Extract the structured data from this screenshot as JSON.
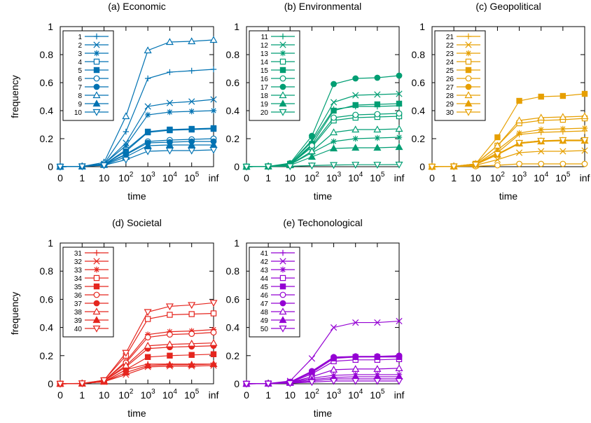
{
  "figure": {
    "x_tick_labels": [
      {
        "base": "0",
        "exp": ""
      },
      {
        "base": "1",
        "exp": ""
      },
      {
        "base": "10",
        "exp": ""
      },
      {
        "base": "10",
        "exp": "2"
      },
      {
        "base": "10",
        "exp": "3"
      },
      {
        "base": "10",
        "exp": "4"
      },
      {
        "base": "10",
        "exp": "5"
      },
      {
        "base": "inf",
        "exp": ""
      }
    ],
    "y_tick_labels": [
      "0",
      "0.2",
      "0.4",
      "0.6",
      "0.8",
      "1"
    ]
  },
  "chart_data": [
    {
      "type": "line",
      "title": "(a) Economic",
      "xlabel": "time",
      "ylabel": "frequency",
      "color": "#0072b2",
      "ylim": [
        0,
        1
      ],
      "grid": false,
      "legend_position": "top-left",
      "x": [
        "0",
        "1",
        "10",
        "10^2",
        "10^3",
        "10^4",
        "10^5",
        "inf"
      ],
      "series": [
        {
          "name": "1",
          "marker": "plus",
          "values": [
            0,
            0.002,
            0.02,
            0.25,
            0.63,
            0.675,
            0.685,
            0.695
          ]
        },
        {
          "name": "2",
          "marker": "cross",
          "values": [
            0,
            0.002,
            0.02,
            0.17,
            0.43,
            0.455,
            0.465,
            0.48
          ]
        },
        {
          "name": "3",
          "marker": "star",
          "values": [
            0,
            0.002,
            0.02,
            0.15,
            0.37,
            0.39,
            0.395,
            0.4
          ]
        },
        {
          "name": "4",
          "marker": "square-open",
          "values": [
            0,
            0.002,
            0.015,
            0.12,
            0.25,
            0.265,
            0.27,
            0.275
          ]
        },
        {
          "name": "5",
          "marker": "square-filled",
          "values": [
            0,
            0.002,
            0.015,
            0.11,
            0.245,
            0.26,
            0.265,
            0.27
          ]
        },
        {
          "name": "6",
          "marker": "circle-open",
          "values": [
            0,
            0.002,
            0.015,
            0.09,
            0.18,
            0.19,
            0.195,
            0.2
          ]
        },
        {
          "name": "7",
          "marker": "circle-filled",
          "values": [
            0,
            0.002,
            0.015,
            0.085,
            0.17,
            0.175,
            0.18,
            0.18
          ]
        },
        {
          "name": "8",
          "marker": "triangle-open",
          "values": [
            0,
            0.002,
            0.03,
            0.36,
            0.83,
            0.89,
            0.895,
            0.905
          ]
        },
        {
          "name": "9",
          "marker": "triangle-filled",
          "values": [
            0,
            0.002,
            0.012,
            0.07,
            0.15,
            0.155,
            0.155,
            0.155
          ]
        },
        {
          "name": "10",
          "marker": "triangle-down-open",
          "values": [
            0,
            0.002,
            0.01,
            0.05,
            0.11,
            0.115,
            0.115,
            0.12
          ]
        }
      ]
    },
    {
      "type": "line",
      "title": "(b) Environmental",
      "xlabel": "time",
      "ylabel": "",
      "color": "#009e73",
      "ylim": [
        0,
        1
      ],
      "grid": false,
      "legend_position": "top-left",
      "x": [
        "0",
        "1",
        "10",
        "10^2",
        "10^3",
        "10^4",
        "10^5",
        "inf"
      ],
      "series": [
        {
          "name": "11",
          "marker": "plus",
          "values": [
            0,
            0.002,
            0.02,
            0.18,
            0.41,
            0.43,
            0.43,
            0.435
          ]
        },
        {
          "name": "12",
          "marker": "cross",
          "values": [
            0,
            0.002,
            0.02,
            0.19,
            0.46,
            0.51,
            0.515,
            0.52
          ]
        },
        {
          "name": "13",
          "marker": "star",
          "values": [
            0,
            0.002,
            0.015,
            0.1,
            0.18,
            0.2,
            0.205,
            0.21
          ]
        },
        {
          "name": "14",
          "marker": "square-open",
          "values": [
            0,
            0.002,
            0.015,
            0.14,
            0.33,
            0.35,
            0.355,
            0.36
          ]
        },
        {
          "name": "15",
          "marker": "square-filled",
          "values": [
            0,
            0.002,
            0.015,
            0.16,
            0.4,
            0.44,
            0.445,
            0.45
          ]
        },
        {
          "name": "16",
          "marker": "circle-open",
          "values": [
            0,
            0.002,
            0.015,
            0.15,
            0.35,
            0.37,
            0.375,
            0.38
          ]
        },
        {
          "name": "17",
          "marker": "circle-filled",
          "values": [
            0,
            0.002,
            0.025,
            0.22,
            0.59,
            0.63,
            0.635,
            0.65
          ]
        },
        {
          "name": "18",
          "marker": "triangle-open",
          "values": [
            0,
            0.002,
            0.015,
            0.11,
            0.245,
            0.265,
            0.265,
            0.27
          ]
        },
        {
          "name": "19",
          "marker": "triangle-filled",
          "values": [
            0,
            0.002,
            0.01,
            0.07,
            0.13,
            0.135,
            0.135,
            0.14
          ]
        },
        {
          "name": "20",
          "marker": "triangle-down-open",
          "values": [
            0,
            0.001,
            0.003,
            0.008,
            0.012,
            0.014,
            0.014,
            0.015
          ]
        }
      ]
    },
    {
      "type": "line",
      "title": "(c) Geopolitical",
      "xlabel": "time",
      "ylabel": "",
      "color": "#e69f00",
      "ylim": [
        0,
        1
      ],
      "grid": false,
      "legend_position": "top-left",
      "x": [
        "0",
        "1",
        "10",
        "10^2",
        "10^3",
        "10^4",
        "10^5",
        "inf"
      ],
      "series": [
        {
          "name": "21",
          "marker": "plus",
          "values": [
            0,
            0.002,
            0.015,
            0.1,
            0.23,
            0.245,
            0.25,
            0.255
          ]
        },
        {
          "name": "22",
          "marker": "cross",
          "values": [
            0,
            0.002,
            0.01,
            0.05,
            0.1,
            0.11,
            0.11,
            0.115
          ]
        },
        {
          "name": "23",
          "marker": "star",
          "values": [
            0,
            0.002,
            0.015,
            0.12,
            0.24,
            0.265,
            0.27,
            0.275
          ]
        },
        {
          "name": "24",
          "marker": "square-open",
          "values": [
            0,
            0.002,
            0.02,
            0.15,
            0.31,
            0.33,
            0.335,
            0.345
          ]
        },
        {
          "name": "25",
          "marker": "square-filled",
          "values": [
            0,
            0.002,
            0.02,
            0.21,
            0.47,
            0.5,
            0.505,
            0.52
          ]
        },
        {
          "name": "26",
          "marker": "circle-open",
          "values": [
            0,
            0.001,
            0.003,
            0.01,
            0.02,
            0.02,
            0.02,
            0.02
          ]
        },
        {
          "name": "27",
          "marker": "circle-filled",
          "values": [
            0,
            0.002,
            0.015,
            0.09,
            0.17,
            0.185,
            0.185,
            0.19
          ]
        },
        {
          "name": "28",
          "marker": "triangle-open",
          "values": [
            0,
            0.002,
            0.02,
            0.15,
            0.33,
            0.35,
            0.355,
            0.36
          ]
        },
        {
          "name": "29",
          "marker": "triangle-filled",
          "values": [
            0,
            0.002,
            0.015,
            0.085,
            0.165,
            0.18,
            0.185,
            0.185
          ]
        },
        {
          "name": "30",
          "marker": "triangle-down-open",
          "values": [
            0,
            0.002,
            0.015,
            0.09,
            0.17,
            0.185,
            0.19,
            0.19
          ]
        }
      ]
    },
    {
      "type": "line",
      "title": "(d) Societal",
      "xlabel": "time",
      "ylabel": "frequency",
      "color": "#e5261f",
      "ylim": [
        0,
        1
      ],
      "grid": false,
      "legend_position": "top-left",
      "x": [
        "0",
        "1",
        "10",
        "10^2",
        "10^3",
        "10^4",
        "10^5",
        "inf"
      ],
      "series": [
        {
          "name": "31",
          "marker": "plus",
          "values": [
            0,
            0.002,
            0.015,
            0.1,
            0.14,
            0.14,
            0.14,
            0.14
          ]
        },
        {
          "name": "32",
          "marker": "cross",
          "values": [
            0,
            0.002,
            0.015,
            0.065,
            0.12,
            0.125,
            0.125,
            0.13
          ]
        },
        {
          "name": "33",
          "marker": "star",
          "values": [
            0,
            0.002,
            0.02,
            0.16,
            0.35,
            0.37,
            0.375,
            0.385
          ]
        },
        {
          "name": "34",
          "marker": "square-open",
          "values": [
            0,
            0.002,
            0.025,
            0.2,
            0.46,
            0.49,
            0.495,
            0.5
          ]
        },
        {
          "name": "35",
          "marker": "square-filled",
          "values": [
            0,
            0.002,
            0.015,
            0.1,
            0.19,
            0.2,
            0.205,
            0.21
          ]
        },
        {
          "name": "36",
          "marker": "circle-open",
          "values": [
            0,
            0.002,
            0.02,
            0.15,
            0.33,
            0.35,
            0.355,
            0.365
          ]
        },
        {
          "name": "37",
          "marker": "circle-filled",
          "values": [
            0,
            0.002,
            0.02,
            0.12,
            0.25,
            0.26,
            0.265,
            0.27
          ]
        },
        {
          "name": "38",
          "marker": "triangle-open",
          "values": [
            0,
            0.002,
            0.02,
            0.13,
            0.27,
            0.28,
            0.285,
            0.29
          ]
        },
        {
          "name": "39",
          "marker": "triangle-filled",
          "values": [
            0,
            0.002,
            0.015,
            0.08,
            0.13,
            0.135,
            0.135,
            0.14
          ]
        },
        {
          "name": "40",
          "marker": "triangle-down-open",
          "values": [
            0,
            0.003,
            0.025,
            0.22,
            0.51,
            0.55,
            0.56,
            0.575
          ]
        }
      ]
    },
    {
      "type": "line",
      "title": "(e) Techonological",
      "xlabel": "time",
      "ylabel": "",
      "color": "#9400d3",
      "ylim": [
        0,
        1
      ],
      "grid": false,
      "legend_position": "top-left",
      "x": [
        "0",
        "1",
        "10",
        "10^2",
        "10^3",
        "10^4",
        "10^5",
        "inf"
      ],
      "series": [
        {
          "name": "41",
          "marker": "plus",
          "values": [
            0,
            0.001,
            0.005,
            0.02,
            0.035,
            0.035,
            0.035,
            0.035
          ]
        },
        {
          "name": "42",
          "marker": "cross",
          "values": [
            0,
            0.002,
            0.02,
            0.18,
            0.4,
            0.435,
            0.435,
            0.445
          ]
        },
        {
          "name": "43",
          "marker": "star",
          "values": [
            0,
            0.001,
            0.008,
            0.04,
            0.06,
            0.065,
            0.065,
            0.065
          ]
        },
        {
          "name": "44",
          "marker": "square-open",
          "values": [
            0,
            0.002,
            0.01,
            0.07,
            0.16,
            0.17,
            0.17,
            0.175
          ]
        },
        {
          "name": "45",
          "marker": "square-filled",
          "values": [
            0,
            0.002,
            0.012,
            0.08,
            0.18,
            0.19,
            0.19,
            0.19
          ]
        },
        {
          "name": "46",
          "marker": "circle-open",
          "values": [
            0,
            0.002,
            0.012,
            0.085,
            0.185,
            0.19,
            0.195,
            0.195
          ]
        },
        {
          "name": "47",
          "marker": "circle-filled",
          "values": [
            0,
            0.002,
            0.013,
            0.09,
            0.19,
            0.195,
            0.195,
            0.2
          ]
        },
        {
          "name": "48",
          "marker": "triangle-open",
          "values": [
            0,
            0.001,
            0.01,
            0.05,
            0.1,
            0.105,
            0.105,
            0.11
          ]
        },
        {
          "name": "49",
          "marker": "triangle-filled",
          "values": [
            0,
            0.001,
            0.006,
            0.03,
            0.045,
            0.05,
            0.05,
            0.05
          ]
        },
        {
          "name": "50",
          "marker": "triangle-down-open",
          "values": [
            0,
            0.001,
            0.004,
            0.012,
            0.02,
            0.02,
            0.02,
            0.02
          ]
        }
      ]
    }
  ]
}
